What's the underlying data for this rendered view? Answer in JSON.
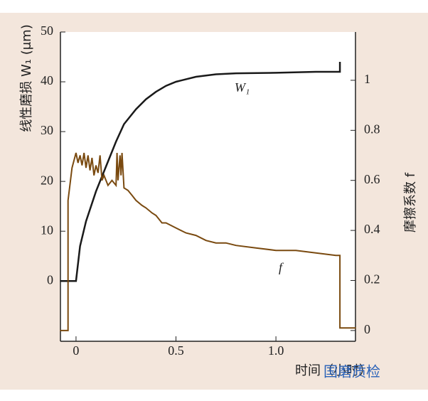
{
  "chart_data": {
    "type": "line",
    "ylabel": "线性磨损 W₁ (μm)",
    "y2label": "摩擦系数 f",
    "xlabel": "时间（小时）",
    "watermark": "国磨质检",
    "xlim": [
      -0.078,
      1.398
    ],
    "xticks": [
      0,
      0.5,
      {
        "value": 1,
        "label": "1.0"
      }
    ],
    "ylim": [
      -12.1,
      50
    ],
    "yticks": [
      0,
      10,
      20,
      30,
      40,
      50
    ],
    "y2lim": [
      -0.043,
      1.193
    ],
    "y2ticks": [
      0,
      0.2,
      0.4,
      0.6,
      0.8,
      1
    ],
    "series": [
      {
        "name": "W₁",
        "color": "#1a1a1a",
        "axis": "y",
        "x": [
          -0.08,
          0,
          0.02,
          0.05,
          0.1,
          0.15,
          0.2,
          0.24,
          0.26,
          0.3,
          0.35,
          0.4,
          0.45,
          0.5,
          0.6,
          0.7,
          0.8,
          1.0,
          1.2,
          1.32,
          1.32
        ],
        "values": [
          0,
          0,
          7,
          12,
          18,
          23,
          28,
          31.5,
          32.5,
          34.5,
          36.5,
          38,
          39.2,
          40,
          41,
          41.5,
          41.7,
          41.8,
          42,
          42,
          44
        ]
      },
      {
        "name": "f",
        "color": "#7a4a10",
        "axis": "y2",
        "x": [
          -0.08,
          -0.04,
          -0.04,
          -0.02,
          0,
          0.01,
          0.02,
          0.03,
          0.04,
          0.05,
          0.06,
          0.07,
          0.08,
          0.09,
          0.1,
          0.11,
          0.12,
          0.13,
          0.14,
          0.16,
          0.18,
          0.2,
          0.205,
          0.21,
          0.22,
          0.225,
          0.23,
          0.24,
          0.26,
          0.28,
          0.3,
          0.33,
          0.35,
          0.38,
          0.4,
          0.43,
          0.45,
          0.5,
          0.55,
          0.6,
          0.65,
          0.7,
          0.75,
          0.8,
          0.9,
          1.0,
          1.1,
          1.2,
          1.3,
          1.32,
          1.32,
          1.4
        ],
        "values": [
          0,
          0,
          0.52,
          0.65,
          0.71,
          0.67,
          0.7,
          0.66,
          0.71,
          0.65,
          0.7,
          0.64,
          0.69,
          0.62,
          0.66,
          0.63,
          0.7,
          0.6,
          0.62,
          0.58,
          0.6,
          0.58,
          0.71,
          0.6,
          0.7,
          0.62,
          0.71,
          0.57,
          0.56,
          0.54,
          0.52,
          0.5,
          0.49,
          0.47,
          0.46,
          0.43,
          0.43,
          0.41,
          0.39,
          0.38,
          0.36,
          0.35,
          0.35,
          0.34,
          0.33,
          0.32,
          0.32,
          0.31,
          0.3,
          0.3,
          0.01,
          0.01
        ]
      }
    ]
  }
}
